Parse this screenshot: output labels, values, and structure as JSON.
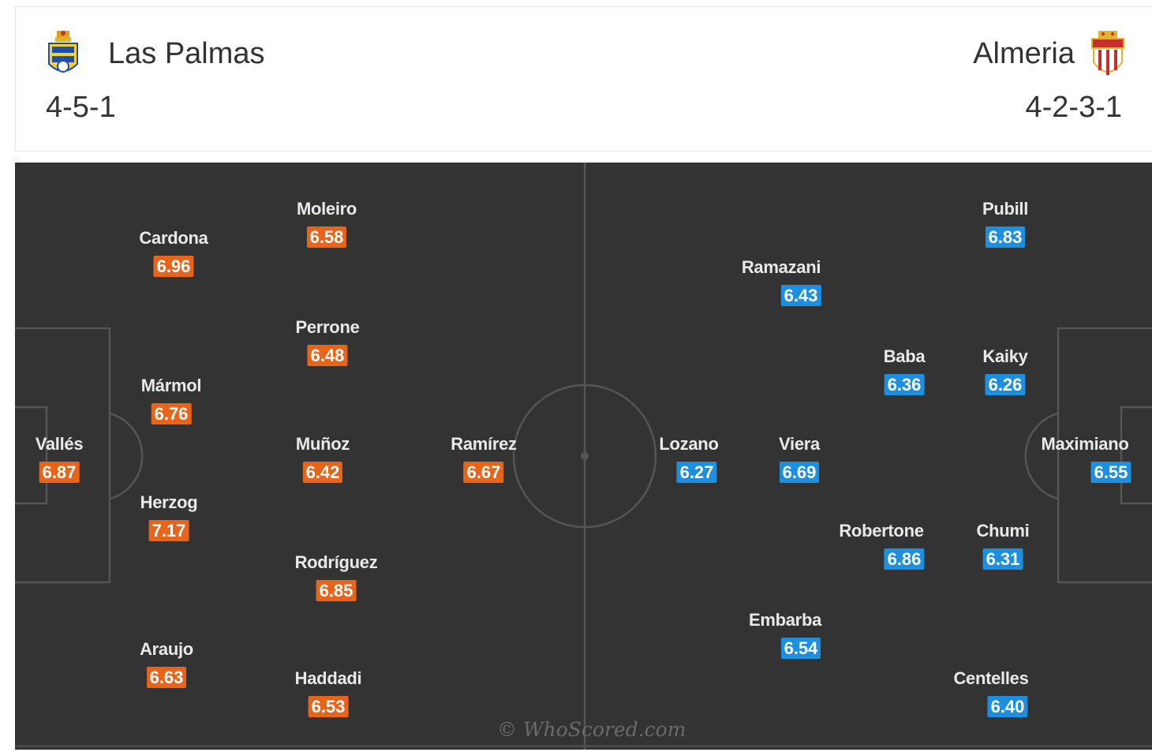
{
  "colors": {
    "pitch": "#333333",
    "home_rating": "#e8641b",
    "away_rating": "#1d8fde",
    "player_name": "#e9e9e9"
  },
  "home": {
    "name": "Las Palmas",
    "formation": "4-5-1",
    "crest_icon": "las-palmas-crest-icon",
    "players": [
      {
        "name": "Vallés",
        "rating": "6.87"
      },
      {
        "name": "Cardona",
        "rating": "6.96"
      },
      {
        "name": "Mármol",
        "rating": "6.76"
      },
      {
        "name": "Herzog",
        "rating": "7.17"
      },
      {
        "name": "Araujo",
        "rating": "6.63"
      },
      {
        "name": "Moleiro",
        "rating": "6.58"
      },
      {
        "name": "Perrone",
        "rating": "6.48"
      },
      {
        "name": "Muñoz",
        "rating": "6.42"
      },
      {
        "name": "Rodríguez",
        "rating": "6.85"
      },
      {
        "name": "Haddadi",
        "rating": "6.53"
      },
      {
        "name": "Ramírez",
        "rating": "6.67"
      }
    ]
  },
  "away": {
    "name": "Almeria",
    "formation": "4-2-3-1",
    "crest_icon": "almeria-crest-icon",
    "players": [
      {
        "name": "Maximiano",
        "rating": "6.55"
      },
      {
        "name": "Pubill",
        "rating": "6.83"
      },
      {
        "name": "Kaiky",
        "rating": "6.26"
      },
      {
        "name": "Chumi",
        "rating": "6.31"
      },
      {
        "name": "Centelles",
        "rating": "6.40"
      },
      {
        "name": "Baba",
        "rating": "6.36"
      },
      {
        "name": "Robertone",
        "rating": "6.86"
      },
      {
        "name": "Ramazani",
        "rating": "6.43"
      },
      {
        "name": "Viera",
        "rating": "6.69"
      },
      {
        "name": "Embarba",
        "rating": "6.54"
      },
      {
        "name": "Lozano",
        "rating": "6.27"
      }
    ]
  },
  "watermark": "© WhoScored.com"
}
